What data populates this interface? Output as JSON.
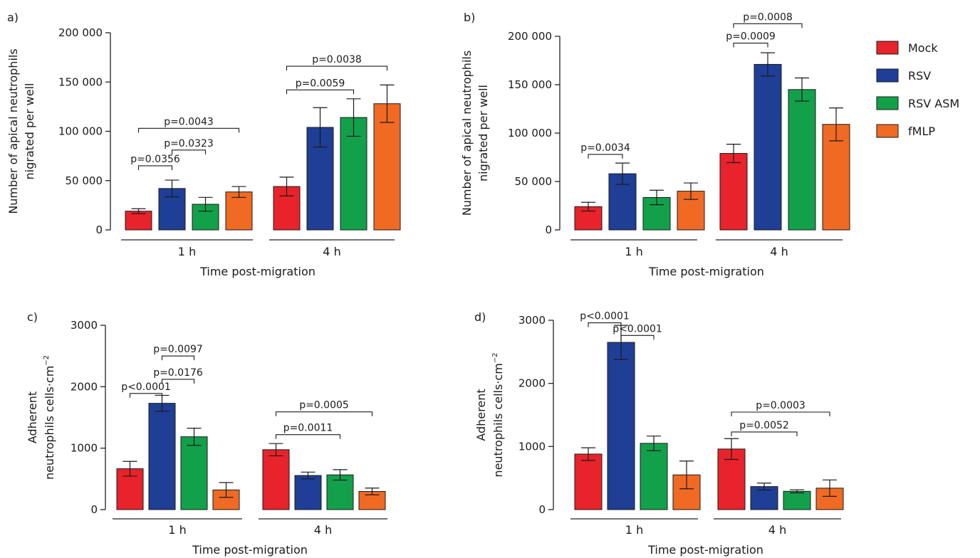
{
  "series_colors": {
    "Mock": "#e8232b",
    "RSV": "#1f3f96",
    "RSV ASM": "#12a14a",
    "fMLP": "#f06a24"
  },
  "legend": {
    "items": [
      "Mock",
      "RSV",
      "RSV ASM",
      "fMLP"
    ]
  },
  "chart_data": [
    {
      "panel": "a)",
      "type": "bar",
      "ylabel": [
        "Number of apical neutrophils",
        "nigrated per well"
      ],
      "xlabel": "Time post-migration",
      "ylim": [
        0,
        200000
      ],
      "yticks": [
        "0",
        "50 000",
        "100 000",
        "150 000",
        "200 000"
      ],
      "ytick_values": [
        0,
        50000,
        100000,
        150000,
        200000
      ],
      "categories": [
        "1 h",
        "4 h"
      ],
      "series": [
        {
          "name": "Mock",
          "values": [
            19000,
            44000
          ],
          "errors": [
            2500,
            9500
          ]
        },
        {
          "name": "RSV",
          "values": [
            42000,
            104000
          ],
          "errors": [
            8500,
            20000
          ]
        },
        {
          "name": "RSV ASM",
          "values": [
            26000,
            114000
          ],
          "errors": [
            7000,
            19000
          ]
        },
        {
          "name": "fMLP",
          "values": [
            38500,
            128000
          ],
          "errors": [
            5500,
            19000
          ]
        }
      ],
      "annotations": [
        {
          "text": "p=0.0356",
          "group": 0,
          "from": 0,
          "to": 1,
          "level": 65000
        },
        {
          "text": "p=0.0323",
          "group": 0,
          "from": 1,
          "to": 2,
          "level": 81000
        },
        {
          "text": "p=0.0043",
          "group": 0,
          "from": 0,
          "to": 3,
          "level": 103000
        },
        {
          "text": "p=0.0059",
          "group": 1,
          "from": 0,
          "to": 2,
          "level": 142000
        },
        {
          "text": "p=0.0038",
          "group": 1,
          "from": 0,
          "to": 3,
          "level": 166000
        }
      ]
    },
    {
      "panel": "b)",
      "type": "bar",
      "ylabel": [
        "Number of apical neutrophils",
        "nigrated per well"
      ],
      "xlabel": "Time post-migration",
      "ylim": [
        0,
        200000
      ],
      "yticks": [
        "0",
        "50 000",
        "100 000",
        "150 000",
        "200 000"
      ],
      "ytick_values": [
        0,
        50000,
        100000,
        150000,
        200000
      ],
      "categories": [
        "1 h",
        "4 h"
      ],
      "series": [
        {
          "name": "Mock",
          "values": [
            24000,
            79000
          ],
          "errors": [
            4500,
            9500
          ]
        },
        {
          "name": "RSV",
          "values": [
            58000,
            171000
          ],
          "errors": [
            11000,
            12000
          ]
        },
        {
          "name": "RSV ASM",
          "values": [
            33500,
            145000
          ],
          "errors": [
            7500,
            12000
          ]
        },
        {
          "name": "fMLP",
          "values": [
            40000,
            109000
          ],
          "errors": [
            8500,
            17000
          ]
        }
      ],
      "annotations": [
        {
          "text": "p=0.0034",
          "group": 0,
          "from": 0,
          "to": 1,
          "level": 78000
        },
        {
          "text": "p=0.0009",
          "group": 1,
          "from": 0,
          "to": 1,
          "level": 193000
        },
        {
          "text": "p=0.0008",
          "group": 1,
          "from": 0,
          "to": 2,
          "level": 213000
        }
      ]
    },
    {
      "panel": "c)",
      "type": "bar",
      "ylabel": [
        "Adherent",
        "neutrophils cells·cm",
        "−2"
      ],
      "xlabel": "Time post-migration",
      "ylim": [
        0,
        3000
      ],
      "yticks": [
        "0",
        "1000",
        "2000",
        "3000"
      ],
      "ytick_values": [
        0,
        1000,
        2000,
        3000
      ],
      "categories": [
        "1 h",
        "4 h"
      ],
      "series": [
        {
          "name": "Mock",
          "values": [
            665,
            975
          ],
          "errors": [
            120,
            100
          ]
        },
        {
          "name": "RSV",
          "values": [
            1730,
            555
          ],
          "errors": [
            130,
            55
          ]
        },
        {
          "name": "RSV ASM",
          "values": [
            1185,
            565
          ],
          "errors": [
            140,
            85
          ]
        },
        {
          "name": "fMLP",
          "values": [
            320,
            295
          ],
          "errors": [
            120,
            55
          ]
        }
      ],
      "annotations": [
        {
          "text": "p<0.0001",
          "group": 0,
          "from": 0,
          "to": 1,
          "level": 1890
        },
        {
          "text": "p=0.0176",
          "group": 0,
          "from": 1,
          "to": 2,
          "level": 2120
        },
        {
          "text": "p=0.0097",
          "group": 0,
          "from": 1,
          "to": 2,
          "level": 2500
        },
        {
          "text": "p=0.0011",
          "group": 1,
          "from": 0,
          "to": 2,
          "level": 1220
        },
        {
          "text": "p=0.0005",
          "group": 1,
          "from": 0,
          "to": 3,
          "level": 1590
        }
      ]
    },
    {
      "panel": "d)",
      "type": "bar",
      "ylabel": [
        "Adherent",
        "neutrophils cells·cm",
        "−2"
      ],
      "xlabel": "Time post-migration",
      "ylim": [
        0,
        3000
      ],
      "yticks": [
        "0",
        "1000",
        "2000",
        "3000"
      ],
      "ytick_values": [
        0,
        1000,
        2000,
        3000
      ],
      "categories": [
        "1 h",
        "4 h"
      ],
      "series": [
        {
          "name": "Mock",
          "values": [
            880,
            960
          ],
          "errors": [
            100,
            165
          ]
        },
        {
          "name": "RSV",
          "values": [
            2650,
            365
          ],
          "errors": [
            270,
            55
          ]
        },
        {
          "name": "RSV ASM",
          "values": [
            1050,
            290
          ],
          "errors": [
            115,
            25
          ]
        },
        {
          "name": "fMLP",
          "values": [
            550,
            340
          ],
          "errors": [
            220,
            130
          ]
        }
      ],
      "annotations": [
        {
          "text": "p<0.0001",
          "group": 0,
          "from": 0,
          "to": 1,
          "level": 2960
        },
        {
          "text": "p<0.0001",
          "group": 0,
          "from": 1,
          "to": 2,
          "level": 2760
        },
        {
          "text": "p=0.0052",
          "group": 1,
          "from": 0,
          "to": 2,
          "level": 1230
        },
        {
          "text": "p=0.0003",
          "group": 1,
          "from": 0,
          "to": 3,
          "level": 1545
        }
      ]
    }
  ]
}
